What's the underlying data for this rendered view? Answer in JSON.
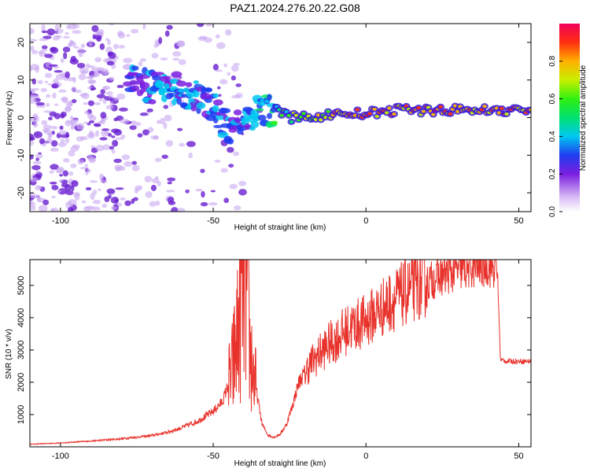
{
  "title": "PAZ1.2024.276.20.22.G08",
  "colors": {
    "axis": "#000000",
    "snr_line": "#e8312a",
    "spectrum_strong": "#6a1fd1",
    "spectrum_light": "#c9a8f2"
  },
  "chart_data": [
    {
      "type": "heatmap",
      "title": "PAZ1.2024.276.20.22.G08",
      "xlabel": "Height of straight line (km)",
      "ylabel": "Frequency (Hz)",
      "xlim": [
        -110,
        54
      ],
      "ylim": [
        -25,
        25
      ],
      "xticks": [
        -100,
        -50,
        0,
        50
      ],
      "yticks": [
        -20,
        -10,
        0,
        10,
        20
      ],
      "colorbar": {
        "label": "Normalized spectral amplitude",
        "range": [
          0,
          1
        ],
        "ticks": [
          0.0,
          0.2,
          0.4,
          0.6,
          0.8
        ],
        "colormap": "rainbow"
      },
      "ridge": {
        "x": [
          -75,
          -70,
          -65,
          -60,
          -55,
          -50,
          -45,
          -40,
          -35,
          -30,
          -25,
          -20,
          -10,
          0,
          10,
          20,
          30,
          40,
          54
        ],
        "y": [
          10,
          8,
          9,
          7,
          6,
          3,
          -3,
          -1,
          2,
          2,
          0,
          0,
          1,
          1,
          2,
          2,
          2,
          2,
          2
        ],
        "amplitude": [
          0.3,
          0.35,
          0.35,
          0.4,
          0.35,
          0.3,
          0.35,
          0.35,
          0.4,
          0.5,
          0.6,
          0.7,
          0.8,
          0.85,
          0.9,
          0.9,
          0.85,
          0.85,
          0.85
        ]
      }
    },
    {
      "type": "line",
      "xlabel": "Height of straight line (km)",
      "ylabel": "SNR (10 * v/v)",
      "xlim": [
        -110,
        54
      ],
      "ylim": [
        0,
        5800
      ],
      "xticks": [
        -100,
        -50,
        0,
        50
      ],
      "yticks": [
        1000,
        2000,
        3000,
        4000,
        5000
      ],
      "series": [
        {
          "x": [
            -110,
            -100,
            -90,
            -80,
            -70,
            -65,
            -60,
            -55,
            -50,
            -47,
            -44,
            -42,
            -40,
            -39,
            -38,
            -36,
            -34,
            -32,
            -30,
            -28,
            -26,
            -24,
            -22,
            -20,
            -18,
            -16,
            -14,
            -12,
            -10,
            -8,
            -5,
            0,
            5,
            10,
            15,
            20,
            25,
            30,
            35,
            40,
            43,
            44,
            46,
            50,
            54
          ],
          "y": [
            80,
            120,
            180,
            250,
            350,
            450,
            600,
            800,
            1100,
            1400,
            2200,
            3500,
            5200,
            4800,
            3000,
            1800,
            700,
            350,
            300,
            400,
            700,
            1300,
            2000,
            2300,
            2600,
            2800,
            3000,
            3200,
            3300,
            3500,
            3700,
            3900,
            4300,
            4600,
            4900,
            5100,
            5300,
            5450,
            5550,
            5600,
            5500,
            2700,
            2650,
            2650,
            2650
          ]
        }
      ]
    }
  ]
}
